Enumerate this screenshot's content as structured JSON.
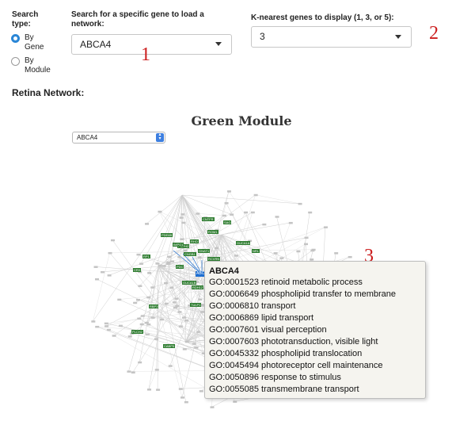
{
  "search_type": {
    "label": "Search type:",
    "options": [
      {
        "label": "By Gene",
        "checked": true
      },
      {
        "label": "By Module",
        "checked": false
      }
    ]
  },
  "gene_search": {
    "label": "Search for a specific gene to load a network:",
    "value": "ABCA4"
  },
  "k_nearest": {
    "label": "K-nearest genes to display (1, 3, or 5):",
    "value": "3"
  },
  "annotations": [
    "1",
    "2",
    "3"
  ],
  "section_title": "Retina Network:",
  "network": {
    "module_title": "Green Module",
    "selected_gene": "ABCA4",
    "node_labels": [
      "CNTFR",
      "GUCA1A",
      "PDE6B",
      "RHO",
      "SAG",
      "CNGB1",
      "GNAT1",
      "PRPH2",
      "ROM1",
      "RP1",
      "CRX",
      "NRL",
      "PDC",
      "RCVRN",
      "GUCA1B",
      "RDH12",
      "TULP1",
      "RBP3",
      "PLCH2",
      "CABP5",
      "IMPG1",
      "ABCA4"
    ],
    "accent_color": "#2f7d31",
    "highlight_color": "#1f6fd1"
  },
  "tooltip": {
    "title": "ABCA4",
    "lines": [
      "GO:0001523 retinoid metabolic process",
      "GO:0006649 phospholipid transfer to membrane",
      "GO:0006810 transport",
      "GO:0006869 lipid transport",
      "GO:0007601 visual perception",
      "GO:0007603 phototransduction, visible light",
      "GO:0045332 phospholipid translocation",
      "GO:0045494 photoreceptor cell maintenance",
      "GO:0050896 response to stimulus",
      "GO:0055085 transmembrane transport"
    ]
  }
}
